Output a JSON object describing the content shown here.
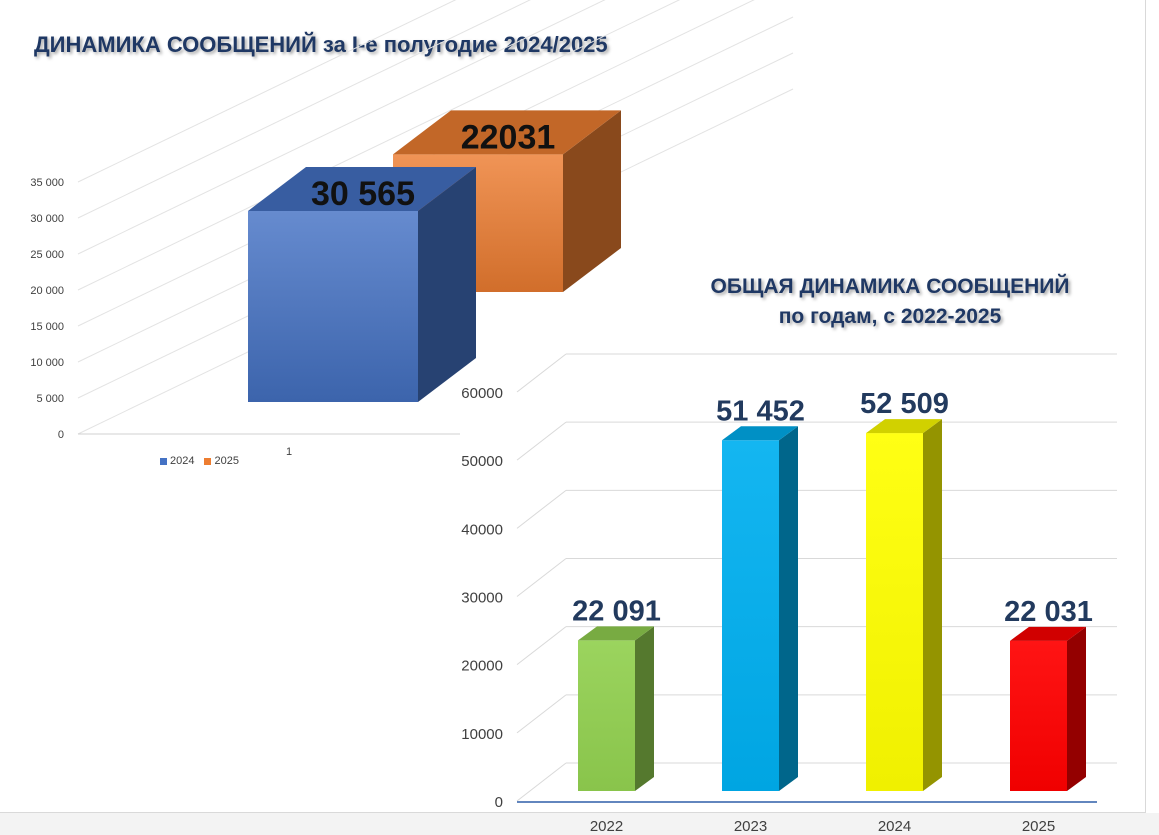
{
  "chart_data": [
    {
      "type": "bar",
      "title": "ДИНАМИКА СООБЩЕНИЙ за I-е полугодие 2024/2025",
      "categories": [
        "1"
      ],
      "series": [
        {
          "name": "2024",
          "values": [
            30565
          ],
          "label": "30 565",
          "color": "#4472c4"
        },
        {
          "name": "2025",
          "values": [
            22031
          ],
          "label": "22031",
          "color": "#ed7d31"
        }
      ],
      "yticks": [
        "0",
        "5 000",
        "10 000",
        "15 000",
        "20 000",
        "25 000",
        "30 000",
        "35 000"
      ],
      "ylim": [
        0,
        35000
      ],
      "legend": "bottom-left",
      "grid": true,
      "view": "3d"
    },
    {
      "type": "bar",
      "title": "ОБЩАЯ ДИНАМИКА СООБЩЕНИЙ",
      "subtitle": "по годам, с 2022-2025",
      "categories": [
        "2022",
        "2023",
        "2024",
        "2025"
      ],
      "values": [
        22091,
        51452,
        52509,
        22031
      ],
      "labels": [
        "22 091",
        "51 452",
        "52 509",
        "22 031"
      ],
      "colors": [
        "#92d050",
        "#00b0f0",
        "#ffff00",
        "#ff0000"
      ],
      "yticks": [
        "0",
        "10000",
        "20000",
        "30000",
        "40000",
        "50000",
        "60000"
      ],
      "ylim": [
        0,
        60000
      ],
      "grid": true,
      "view": "3d"
    }
  ]
}
